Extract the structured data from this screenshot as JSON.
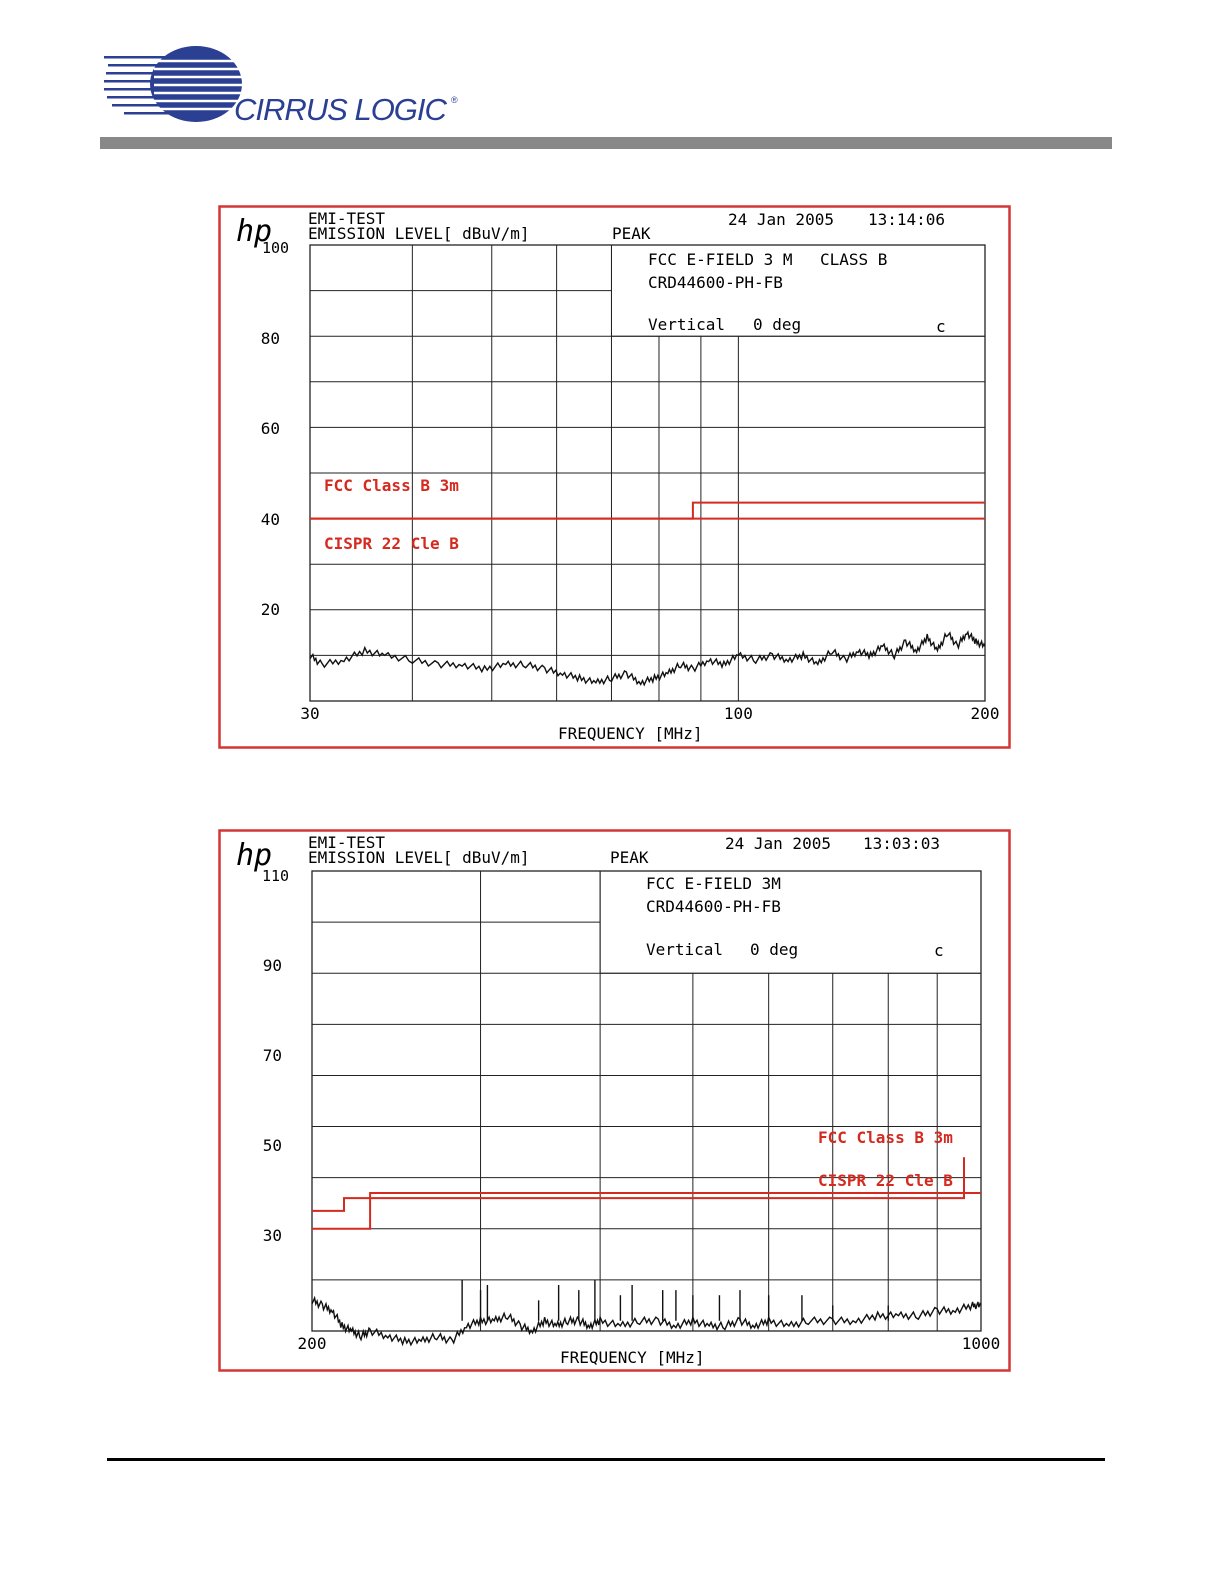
{
  "logo": {
    "text": "CIRRUS LOGIC",
    "reg": "®"
  },
  "colors": {
    "limit": "#d42a1f",
    "frame": "#d43535",
    "trace": "#111111",
    "grid": "#222222",
    "logo_blue": "#2b3f93",
    "bar": "#888888"
  },
  "chart_data": [
    {
      "type": "line",
      "brand": "hp",
      "header1": "EMI-TEST",
      "header2": "EMISSION LEVEL[ dBuV/m]",
      "detector": "PEAK",
      "date": "24 Jan 2005",
      "time": "13:14:06",
      "info1a": "FCC E-FIELD 3 M",
      "info1b": "CLASS B",
      "info2": "CRD44600-PH-FB",
      "info3a": "Vertical",
      "info3b": "0 deg",
      "info3c": "c",
      "xlabel": "FREQUENCY [MHz]",
      "xscale": "log",
      "xlim": [
        30,
        200
      ],
      "ylim": [
        0,
        100
      ],
      "yticks": [
        100,
        80,
        60,
        40,
        20
      ],
      "xtick_labels": [
        {
          "v": 30,
          "t": "30"
        },
        {
          "v": 100,
          "t": "100"
        },
        {
          "v": 200,
          "t": "200"
        }
      ],
      "xgrid": [
        40,
        50,
        60,
        70,
        80,
        90,
        100
      ],
      "ygrid": [
        10,
        20,
        30,
        40,
        50,
        60,
        70,
        80,
        90,
        100
      ],
      "infobox_x": 70,
      "infobox_y": 80,
      "limits": [
        {
          "name": "FCC Class B 3m",
          "x": [
            30,
            88,
            88,
            200
          ],
          "y": [
            40,
            40,
            43.5,
            43.5
          ]
        },
        {
          "name": "CISPR 22 Cle  B",
          "x": [
            30,
            200
          ],
          "y": [
            40,
            40
          ]
        }
      ],
      "limit_labels": [
        "FCC Class B 3m",
        "CISPR 22 Cle  B"
      ],
      "series": [
        {
          "x": [
            30,
            31,
            33,
            35,
            37,
            40,
            43,
            46,
            49,
            52,
            55,
            58,
            61,
            64,
            67,
            70,
            73,
            76,
            79,
            82,
            85,
            88,
            92,
            96,
            100,
            105,
            110,
            115,
            120,
            125,
            130,
            135,
            140,
            145,
            150,
            155,
            160,
            165,
            170,
            175,
            180,
            185,
            190,
            195,
            200
          ],
          "y": [
            10,
            8,
            9,
            11,
            10,
            9,
            8,
            8,
            7,
            8,
            8,
            7,
            6,
            5,
            4,
            5,
            6,
            4,
            5,
            6,
            8,
            7,
            9,
            8,
            10,
            9,
            10,
            9,
            10,
            8,
            11,
            9,
            11,
            10,
            12,
            10,
            13,
            11,
            14,
            11,
            15,
            12,
            15,
            13,
            12
          ]
        }
      ]
    },
    {
      "type": "line",
      "brand": "hp",
      "header1": "EMI-TEST",
      "header2": "EMISSION LEVEL[ dBuV/m]",
      "detector": "PEAK",
      "date": "24 Jan 2005",
      "time": "13:03:03",
      "info1a": "FCC E-FIELD 3M",
      "info1b": "",
      "info2": "CRD44600-PH-FB",
      "info3a": "Vertical",
      "info3b": "0 deg",
      "info3c": "c",
      "xlabel": "FREQUENCY [MHz]",
      "xscale": "log",
      "xlim": [
        200,
        1000
      ],
      "ylim": [
        20,
        110
      ],
      "yticks": [
        110,
        90,
        70,
        50,
        30
      ],
      "xtick_labels": [
        {
          "v": 200,
          "t": "200"
        },
        {
          "v": 1000,
          "t": "1000"
        }
      ],
      "xgrid": [
        300,
        400,
        500,
        600,
        700,
        800,
        900
      ],
      "ygrid": [
        30,
        40,
        50,
        60,
        70,
        80,
        90,
        100,
        110
      ],
      "infobox_x": 400,
      "infobox_y": 90,
      "limits": [
        {
          "name": "FCC Class B 3m",
          "x": [
            200,
            216,
            216,
            960,
            960
          ],
          "y": [
            43.5,
            43.5,
            46,
            46,
            54
          ]
        },
        {
          "name": "CISPR 22 Cle  B",
          "x": [
            200,
            230,
            230,
            1000
          ],
          "y": [
            40,
            40,
            47,
            47
          ]
        }
      ],
      "limit_labels": [
        "FCC Class B 3m",
        "CISPR 22 Cle  B"
      ],
      "series": [
        {
          "x": [
            200,
            205,
            210,
            215,
            220,
            225,
            230,
            240,
            250,
            260,
            270,
            280,
            290,
            300,
            310,
            320,
            330,
            340,
            350,
            360,
            370,
            380,
            390,
            400,
            420,
            440,
            460,
            480,
            500,
            520,
            540,
            560,
            580,
            600,
            630,
            660,
            700,
            740,
            780,
            820,
            860,
            900,
            940,
            980,
            1000
          ],
          "y": [
            26,
            25,
            24,
            21,
            20,
            19,
            20,
            19,
            18,
            18,
            19,
            18,
            21,
            22,
            22,
            23,
            21,
            20,
            22,
            21,
            22,
            22,
            21,
            22,
            21,
            22,
            22,
            21,
            22,
            21,
            21,
            22,
            21,
            22,
            21,
            22,
            22,
            22,
            23,
            23,
            23,
            24,
            24,
            25,
            25
          ]
        }
      ],
      "spikes": [
        {
          "x": 287,
          "y": 30
        },
        {
          "x": 300,
          "y": 28
        },
        {
          "x": 305,
          "y": 29
        },
        {
          "x": 345,
          "y": 26
        },
        {
          "x": 362,
          "y": 29
        },
        {
          "x": 380,
          "y": 28
        },
        {
          "x": 395,
          "y": 30
        },
        {
          "x": 420,
          "y": 27
        },
        {
          "x": 432,
          "y": 29
        },
        {
          "x": 465,
          "y": 28
        },
        {
          "x": 480,
          "y": 28
        },
        {
          "x": 500,
          "y": 27
        },
        {
          "x": 533,
          "y": 27
        },
        {
          "x": 560,
          "y": 28
        },
        {
          "x": 600,
          "y": 27
        },
        {
          "x": 650,
          "y": 27
        },
        {
          "x": 700,
          "y": 25
        },
        {
          "x": 800,
          "y": 25
        }
      ]
    }
  ]
}
